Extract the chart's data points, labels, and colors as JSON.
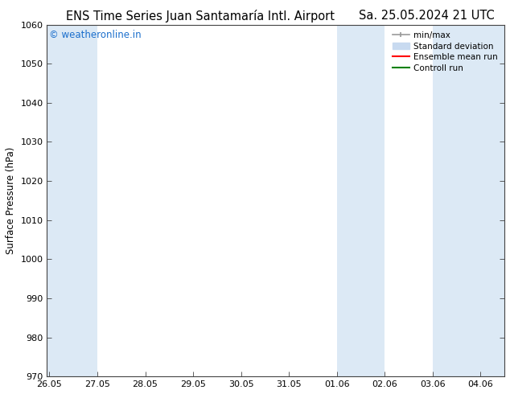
{
  "title_left": "ENS Time Series Juan Santamaría Intl. Airport",
  "title_right": "Sa. 25.05.2024 21 UTC",
  "ylabel": "Surface Pressure (hPa)",
  "ylim": [
    970,
    1060
  ],
  "yticks": [
    970,
    980,
    990,
    1000,
    1010,
    1020,
    1030,
    1040,
    1050,
    1060
  ],
  "xtick_labels": [
    "26.05",
    "27.05",
    "28.05",
    "29.05",
    "30.05",
    "31.05",
    "01.06",
    "02.06",
    "03.06",
    "04.06"
  ],
  "xtick_positions": [
    0,
    1,
    2,
    3,
    4,
    5,
    6,
    7,
    8,
    9
  ],
  "xlim": [
    -0.05,
    9.5
  ],
  "shaded_bands": [
    {
      "x_start": -0.05,
      "x_end": 1.0
    },
    {
      "x_start": 6.0,
      "x_end": 7.0
    },
    {
      "x_start": 8.0,
      "x_end": 9.5
    }
  ],
  "band_color": "#dce9f5",
  "watermark_text": "© weatheronline.in",
  "watermark_color": "#1a6ecc",
  "background_color": "#ffffff",
  "spine_color": "#444444",
  "tick_color": "#444444",
  "title_fontsize": 10.5,
  "tick_fontsize": 8,
  "ylabel_fontsize": 8.5,
  "watermark_fontsize": 8.5,
  "legend_fontsize": 7.5,
  "minmax_color": "#999999",
  "stddev_color": "#c8daf0",
  "ensemble_color": "#ff0000",
  "control_color": "#008000"
}
